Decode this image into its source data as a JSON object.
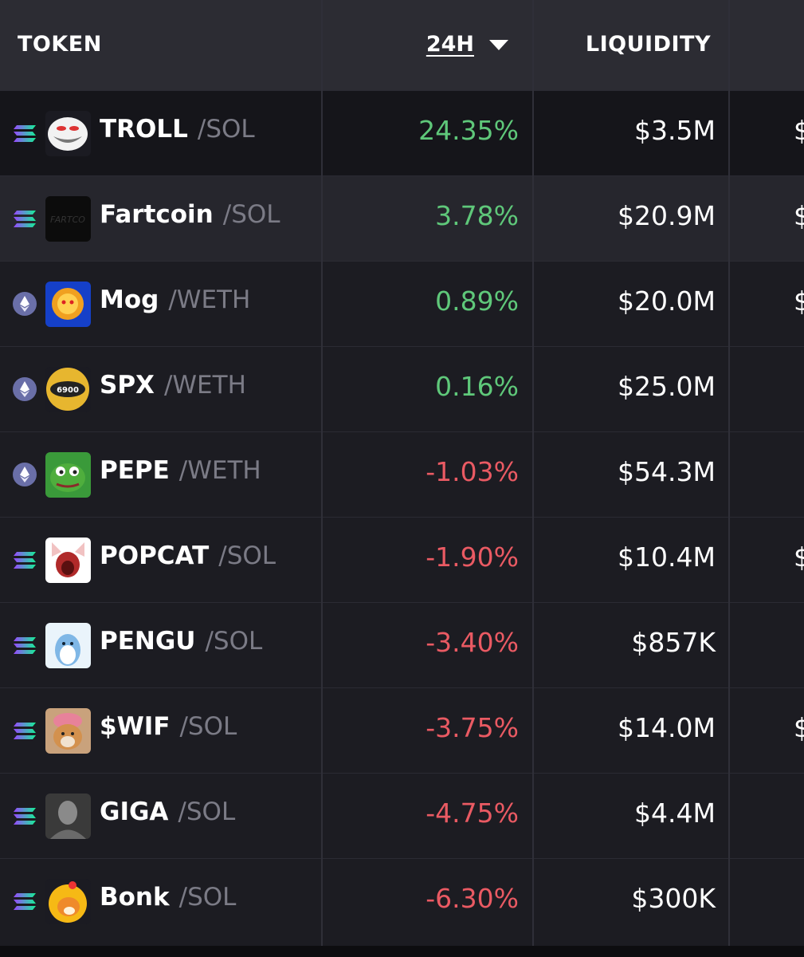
{
  "header": {
    "token_label": "TOKEN",
    "change_label": "24H",
    "liquidity_label": "LIQUIDITY"
  },
  "colors": {
    "positive": "#5fc87a",
    "negative": "#ea5a63",
    "pair_text": "#7b7b86"
  },
  "rows": [
    {
      "symbol": "TROLL",
      "pair": "/SOL",
      "chain": "solana-icon",
      "logo": "troll-face-logo",
      "change": "24.35%",
      "direction": "up",
      "liquidity": "$3.5M",
      "next_col_cut": "$"
    },
    {
      "symbol": "Fartcoin",
      "pair": "/SOL",
      "chain": "solana-icon",
      "logo": "fartcoin-logo",
      "change": "3.78%",
      "direction": "up",
      "liquidity": "$20.9M",
      "next_col_cut": "$"
    },
    {
      "symbol": "Mog",
      "pair": "/WETH",
      "chain": "ethereum-icon",
      "logo": "mog-cat-logo",
      "change": "0.89%",
      "direction": "up",
      "liquidity": "$20.0M",
      "next_col_cut": "$"
    },
    {
      "symbol": "SPX",
      "pair": "/WETH",
      "chain": "ethereum-icon",
      "logo": "spx6900-coin-logo",
      "change": "0.16%",
      "direction": "up",
      "liquidity": "$25.0M",
      "next_col_cut": ""
    },
    {
      "symbol": "PEPE",
      "pair": "/WETH",
      "chain": "ethereum-icon",
      "logo": "pepe-frog-logo",
      "change": "-1.03%",
      "direction": "down",
      "liquidity": "$54.3M",
      "next_col_cut": ""
    },
    {
      "symbol": "POPCAT",
      "pair": "/SOL",
      "chain": "solana-icon",
      "logo": "popcat-logo",
      "change": "-1.90%",
      "direction": "down",
      "liquidity": "$10.4M",
      "next_col_cut": "$"
    },
    {
      "symbol": "PENGU",
      "pair": "/SOL",
      "chain": "solana-icon",
      "logo": "pengu-penguin-logo",
      "change": "-3.40%",
      "direction": "down",
      "liquidity": "$857K",
      "next_col_cut": ""
    },
    {
      "symbol": "$WIF",
      "pair": "/SOL",
      "chain": "solana-icon",
      "logo": "dogwifhat-logo",
      "change": "-3.75%",
      "direction": "down",
      "liquidity": "$14.0M",
      "next_col_cut": "$"
    },
    {
      "symbol": "GIGA",
      "pair": "/SOL",
      "chain": "solana-icon",
      "logo": "gigachad-logo",
      "change": "-4.75%",
      "direction": "down",
      "liquidity": "$4.4M",
      "next_col_cut": ""
    },
    {
      "symbol": "Bonk",
      "pair": "/SOL",
      "chain": "solana-icon",
      "logo": "bonk-dog-logo",
      "change": "-6.30%",
      "direction": "down",
      "liquidity": "$300K",
      "next_col_cut": ""
    }
  ]
}
